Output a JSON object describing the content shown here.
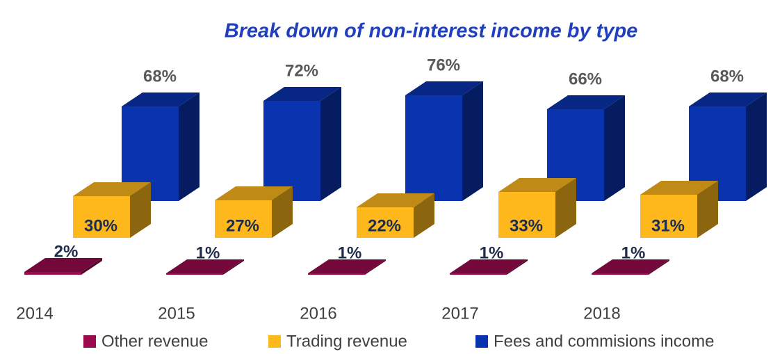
{
  "chart_data": {
    "type": "bar3d",
    "title": "Break down of non-interest income by type",
    "title_color": "#1f3fbf",
    "categories": [
      "2014",
      "2015",
      "2016",
      "2017",
      "2018"
    ],
    "series": [
      {
        "name": "Other revenue",
        "color": "#9b0a4f",
        "values": [
          2,
          1,
          1,
          1,
          1
        ],
        "value_labels": [
          "2%",
          "1%",
          "1%",
          "1%",
          "1%"
        ]
      },
      {
        "name": "Trading revenue",
        "color": "#ffb81c",
        "values": [
          30,
          27,
          22,
          33,
          31
        ],
        "value_labels": [
          "30%",
          "27%",
          "22%",
          "33%",
          "31%"
        ]
      },
      {
        "name": "Fees and commisions income",
        "color": "#0a33b0",
        "values": [
          68,
          72,
          76,
          66,
          68
        ],
        "value_labels": [
          "68%",
          "72%",
          "76%",
          "66%",
          "68%"
        ]
      }
    ]
  }
}
